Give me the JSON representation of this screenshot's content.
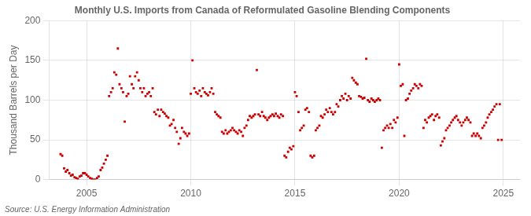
{
  "chart_data": {
    "type": "scatter",
    "title": "Monthly U.S. Imports from Canada of Reformulated Gasoline Blending Components",
    "ylabel": "Thousand Barrels per Day",
    "annotations": [
      "Source: U.S. Energy Information Administration"
    ],
    "color": "#cc0000",
    "marker": "square",
    "grid": true,
    "xlim": [
      2003.2,
      2025.8
    ],
    "xticks": [
      2005,
      2010,
      2015,
      2020,
      2025
    ],
    "ylim": [
      0,
      200
    ],
    "yticks": [
      0,
      50,
      100,
      150,
      200
    ],
    "x": [
      2003.75,
      2003.83,
      2003.92,
      2004.0,
      2004.08,
      2004.17,
      2004.25,
      2004.33,
      2004.42,
      2004.5,
      2004.58,
      2004.67,
      2004.75,
      2004.83,
      2004.92,
      2005.0,
      2005.08,
      2005.17,
      2005.25,
      2005.33,
      2005.42,
      2005.5,
      2005.58,
      2005.67,
      2005.75,
      2005.83,
      2005.92,
      2006.0,
      2006.08,
      2006.17,
      2006.25,
      2006.33,
      2006.42,
      2006.5,
      2006.58,
      2006.67,
      2006.75,
      2006.83,
      2006.92,
      2007.0,
      2007.08,
      2007.17,
      2007.25,
      2007.33,
      2007.42,
      2007.5,
      2007.58,
      2007.67,
      2007.75,
      2007.83,
      2007.92,
      2008.0,
      2008.08,
      2008.17,
      2008.25,
      2008.33,
      2008.42,
      2008.5,
      2008.58,
      2008.67,
      2008.75,
      2008.83,
      2008.92,
      2009.0,
      2009.08,
      2009.17,
      2009.25,
      2009.33,
      2009.42,
      2009.5,
      2009.58,
      2009.67,
      2009.75,
      2009.83,
      2009.92,
      2010.0,
      2010.08,
      2010.17,
      2010.25,
      2010.33,
      2010.42,
      2010.5,
      2010.58,
      2010.67,
      2010.75,
      2010.83,
      2010.92,
      2011.0,
      2011.08,
      2011.17,
      2011.25,
      2011.33,
      2011.42,
      2011.5,
      2011.58,
      2011.67,
      2011.75,
      2011.83,
      2011.92,
      2012.0,
      2012.08,
      2012.17,
      2012.25,
      2012.33,
      2012.42,
      2012.5,
      2012.58,
      2012.67,
      2012.75,
      2012.83,
      2012.92,
      2013.0,
      2013.08,
      2013.17,
      2013.25,
      2013.33,
      2013.42,
      2013.5,
      2013.58,
      2013.67,
      2013.75,
      2013.83,
      2013.92,
      2014.0,
      2014.08,
      2014.17,
      2014.25,
      2014.33,
      2014.42,
      2014.5,
      2014.58,
      2014.67,
      2014.75,
      2014.83,
      2014.92,
      2015.0,
      2015.08,
      2015.17,
      2015.25,
      2015.33,
      2015.42,
      2015.5,
      2015.58,
      2015.67,
      2015.75,
      2015.83,
      2015.92,
      2016.0,
      2016.08,
      2016.17,
      2016.25,
      2016.33,
      2016.42,
      2016.5,
      2016.58,
      2016.67,
      2016.75,
      2016.83,
      2016.92,
      2017.0,
      2017.08,
      2017.17,
      2017.25,
      2017.33,
      2017.42,
      2017.5,
      2017.58,
      2017.67,
      2017.75,
      2017.83,
      2017.92,
      2018.0,
      2018.08,
      2018.17,
      2018.25,
      2018.33,
      2018.42,
      2018.5,
      2018.58,
      2018.67,
      2018.75,
      2018.83,
      2018.92,
      2019.0,
      2019.08,
      2019.17,
      2019.25,
      2019.33,
      2019.42,
      2019.5,
      2019.58,
      2019.67,
      2019.75,
      2019.83,
      2019.92,
      2020.0,
      2020.08,
      2020.17,
      2020.25,
      2020.33,
      2020.42,
      2020.5,
      2020.58,
      2020.67,
      2020.75,
      2020.83,
      2020.92,
      2021.0,
      2021.08,
      2021.17,
      2021.25,
      2021.33,
      2021.42,
      2021.5,
      2021.58,
      2021.67,
      2021.75,
      2021.83,
      2021.92,
      2022.0,
      2022.08,
      2022.17,
      2022.25,
      2022.33,
      2022.42,
      2022.5,
      2022.58,
      2022.67,
      2022.75,
      2022.83,
      2022.92,
      2023.0,
      2023.08,
      2023.17,
      2023.25,
      2023.33,
      2023.42,
      2023.5,
      2023.58,
      2023.67,
      2023.75,
      2023.83,
      2023.92,
      2024.0,
      2024.08,
      2024.17,
      2024.25,
      2024.33,
      2024.42,
      2024.5,
      2024.58,
      2024.67,
      2024.75,
      2024.83,
      2024.92
    ],
    "values": [
      32,
      30,
      14,
      10,
      12,
      8,
      5,
      6,
      3,
      2,
      1,
      4,
      5,
      8,
      8,
      6,
      4,
      2,
      1,
      0,
      0,
      2,
      4,
      12,
      15,
      20,
      25,
      30,
      105,
      110,
      115,
      135,
      132,
      165,
      120,
      115,
      110,
      73,
      105,
      108,
      130,
      120,
      115,
      130,
      135,
      125,
      115,
      110,
      115,
      105,
      108,
      110,
      105,
      115,
      85,
      82,
      88,
      80,
      88,
      85,
      83,
      80,
      78,
      68,
      70,
      75,
      65,
      60,
      45,
      52,
      65,
      60,
      58,
      55,
      58,
      108,
      150,
      115,
      110,
      108,
      112,
      105,
      115,
      110,
      108,
      106,
      110,
      115,
      108,
      85,
      82,
      80,
      78,
      60,
      58,
      62,
      58,
      60,
      62,
      65,
      62,
      60,
      58,
      62,
      60,
      55,
      65,
      68,
      75,
      80,
      78,
      80,
      82,
      138,
      82,
      80,
      85,
      80,
      78,
      75,
      78,
      80,
      82,
      80,
      83,
      80,
      78,
      82,
      80,
      30,
      28,
      35,
      40,
      38,
      42,
      110,
      105,
      85,
      62,
      65,
      68,
      88,
      90,
      85,
      30,
      28,
      30,
      62,
      65,
      68,
      80,
      78,
      82,
      88,
      85,
      90,
      85,
      82,
      85,
      95,
      92,
      100,
      105,
      102,
      108,
      100,
      105,
      102,
      128,
      125,
      122,
      120,
      105,
      104,
      102,
      103,
      152,
      100,
      98,
      102,
      100,
      98,
      100,
      102,
      100,
      40,
      62,
      65,
      68,
      65,
      70,
      65,
      75,
      72,
      78,
      145,
      118,
      120,
      55,
      100,
      102,
      108,
      112,
      115,
      120,
      118,
      115,
      120,
      118,
      65,
      75,
      72,
      78,
      80,
      82,
      75,
      80,
      82,
      78,
      43,
      48,
      52,
      62,
      65,
      68,
      72,
      75,
      78,
      80,
      75,
      72,
      68,
      72,
      75,
      78,
      75,
      72,
      55,
      58,
      55,
      58,
      55,
      52,
      65,
      68,
      72,
      78,
      82,
      85,
      88,
      92,
      95,
      50,
      95,
      50
    ]
  }
}
